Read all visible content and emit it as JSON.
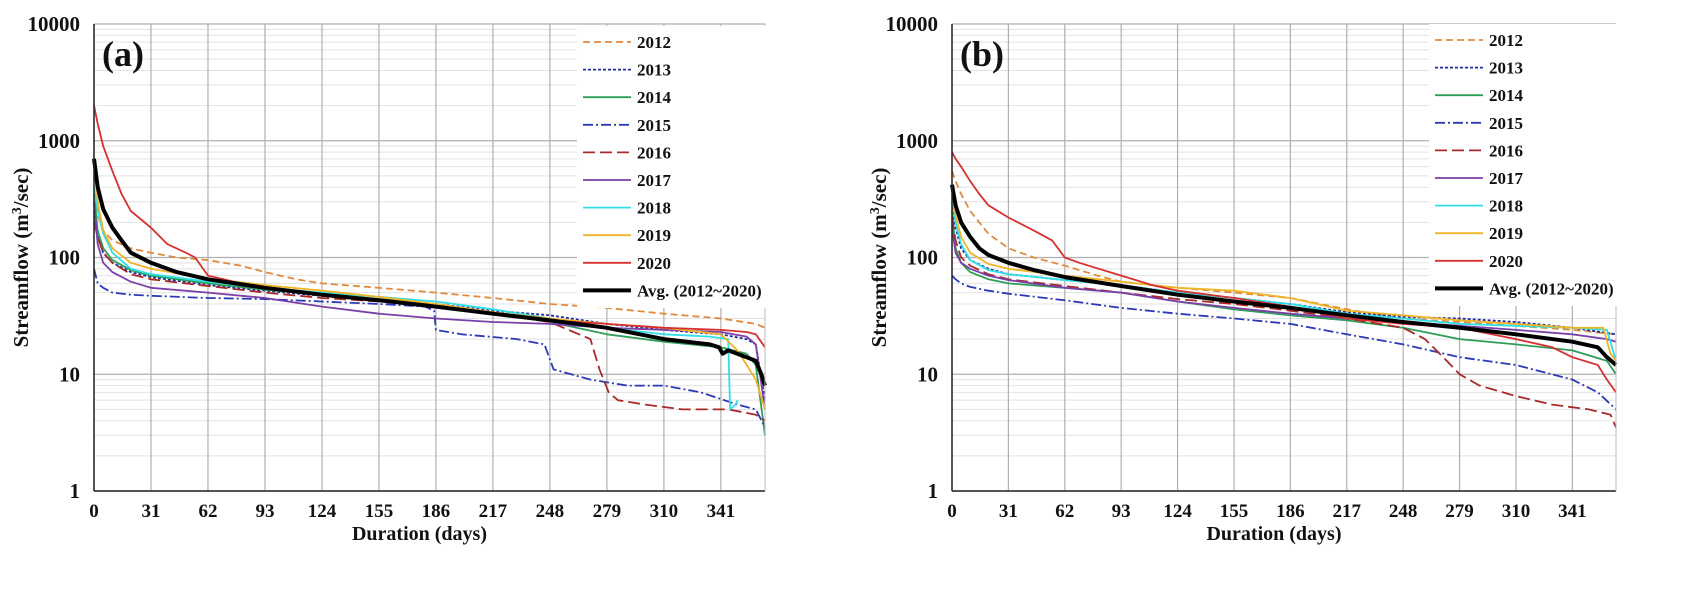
{
  "chart_data": [
    {
      "type": "line",
      "panel_label": "(a)",
      "xlabel": "Duration (days)",
      "ylabel_main": "Streamflow (m",
      "ylabel_sup": "3",
      "ylabel_tail": "/sec)",
      "yscale": "log",
      "xlim": [
        0,
        365
      ],
      "ylim": [
        1,
        10000
      ],
      "xticks": [
        0,
        31,
        62,
        93,
        124,
        155,
        186,
        217,
        248,
        279,
        310,
        341
      ],
      "yticks": [
        1,
        10,
        100,
        1000,
        10000
      ],
      "ytick_labels": [
        "1",
        "10",
        "100",
        "1000",
        "10000"
      ],
      "grid": true,
      "legend_position": "top-right",
      "series": [
        {
          "name": "2012",
          "color": "#E08A3C",
          "dash": "7,4",
          "width": 1.8,
          "x": [
            0,
            2,
            5,
            10,
            20,
            31,
            45,
            62,
            80,
            93,
            110,
            124,
            155,
            186,
            217,
            248,
            279,
            310,
            341,
            360,
            365
          ],
          "y": [
            350,
            230,
            170,
            140,
            120,
            110,
            100,
            95,
            85,
            75,
            65,
            60,
            55,
            50,
            45,
            40,
            37,
            33,
            30,
            27,
            25
          ]
        },
        {
          "name": "2013",
          "color": "#1F2C9C",
          "dash": "3,2",
          "width": 1.8,
          "x": [
            0,
            2,
            5,
            10,
            20,
            31,
            62,
            93,
            124,
            155,
            186,
            217,
            248,
            279,
            310,
            341,
            355,
            360,
            365
          ],
          "y": [
            250,
            150,
            110,
            90,
            75,
            68,
            58,
            52,
            47,
            43,
            40,
            35,
            32,
            27,
            24,
            22,
            20,
            18,
            6
          ]
        },
        {
          "name": "2014",
          "color": "#2E9E58",
          "dash": "",
          "width": 1.8,
          "x": [
            0,
            2,
            5,
            10,
            20,
            31,
            62,
            93,
            124,
            155,
            186,
            217,
            248,
            279,
            310,
            341,
            355,
            360,
            365
          ],
          "y": [
            350,
            170,
            120,
            95,
            78,
            70,
            60,
            53,
            48,
            44,
            40,
            33,
            28,
            22,
            19,
            17,
            15,
            12,
            3
          ]
        },
        {
          "name": "2015",
          "color": "#2B3BB8",
          "dash": "10,3,2,3",
          "width": 1.8,
          "x": [
            0,
            2,
            5,
            10,
            20,
            31,
            62,
            93,
            124,
            155,
            180,
            185,
            186,
            200,
            230,
            245,
            250,
            270,
            290,
            310,
            330,
            350,
            360,
            365
          ],
          "y": [
            80,
            60,
            55,
            50,
            48,
            47,
            45,
            44,
            42,
            40,
            38,
            35,
            24,
            22,
            20,
            18,
            11,
            9,
            8,
            8,
            7,
            5.5,
            5,
            3.5
          ]
        },
        {
          "name": "2016",
          "color": "#A82A2A",
          "dash": "12,5",
          "width": 1.8,
          "x": [
            0,
            2,
            5,
            10,
            20,
            31,
            62,
            93,
            124,
            155,
            186,
            217,
            248,
            270,
            275,
            280,
            285,
            300,
            320,
            345,
            360,
            365
          ],
          "y": [
            200,
            150,
            110,
            90,
            72,
            65,
            57,
            50,
            45,
            42,
            38,
            33,
            28,
            20,
            11,
            7,
            6,
            5.5,
            5,
            5,
            4.5,
            4
          ]
        },
        {
          "name": "2017",
          "color": "#7B3FA8",
          "dash": "",
          "width": 1.8,
          "x": [
            0,
            2,
            5,
            10,
            20,
            31,
            62,
            93,
            124,
            155,
            186,
            217,
            248,
            279,
            310,
            341,
            355,
            360,
            365
          ],
          "y": [
            300,
            130,
            90,
            75,
            62,
            55,
            50,
            45,
            38,
            33,
            30,
            28,
            27,
            25,
            24,
            23,
            21,
            18,
            5
          ]
        },
        {
          "name": "2018",
          "color": "#2EE0E8",
          "dash": "",
          "width": 1.8,
          "x": [
            0,
            2,
            5,
            10,
            20,
            31,
            62,
            93,
            124,
            155,
            186,
            217,
            248,
            279,
            310,
            335,
            345,
            346,
            349,
            350
          ],
          "y": [
            400,
            250,
            160,
            110,
            80,
            72,
            62,
            55,
            50,
            46,
            42,
            36,
            30,
            25,
            22,
            21,
            20,
            5,
            5.5,
            6
          ]
        },
        {
          "name": "2019",
          "color": "#F0B428",
          "dash": "",
          "width": 1.8,
          "x": [
            0,
            2,
            5,
            10,
            20,
            31,
            62,
            93,
            124,
            155,
            186,
            217,
            248,
            279,
            310,
            341,
            350,
            360,
            365
          ],
          "y": [
            700,
            300,
            170,
            120,
            90,
            80,
            66,
            58,
            52,
            46,
            40,
            34,
            30,
            27,
            25,
            22,
            16,
            9,
            5
          ]
        },
        {
          "name": "2020",
          "color": "#D63030",
          "dash": "",
          "width": 1.8,
          "x": [
            0,
            2,
            5,
            10,
            15,
            20,
            31,
            40,
            50,
            55,
            62,
            80,
            93,
            124,
            155,
            186,
            217,
            248,
            279,
            310,
            341,
            355,
            360,
            365
          ],
          "y": [
            2000,
            1400,
            900,
            550,
            350,
            250,
            180,
            130,
            110,
            100,
            70,
            60,
            55,
            48,
            43,
            38,
            33,
            29,
            27,
            25,
            24,
            23,
            22,
            17
          ]
        },
        {
          "name": "Avg. (2012~2020)",
          "color": "#000000",
          "dash": "",
          "width": 4,
          "x": [
            0,
            2,
            5,
            10,
            15,
            20,
            31,
            45,
            62,
            93,
            124,
            155,
            186,
            217,
            248,
            279,
            310,
            335,
            340,
            342,
            345,
            355,
            360,
            363,
            365
          ],
          "y": [
            700,
            400,
            260,
            180,
            140,
            110,
            90,
            75,
            65,
            55,
            48,
            43,
            38,
            33,
            29,
            25,
            20,
            18,
            17,
            15,
            16,
            14,
            13,
            10,
            8
          ]
        }
      ]
    },
    {
      "type": "line",
      "panel_label": "(b)",
      "xlabel": "Duration (days)",
      "ylabel_main": "Streamflow (m",
      "ylabel_sup": "3",
      "ylabel_tail": "/sec)",
      "yscale": "log",
      "xlim": [
        0,
        365
      ],
      "ylim": [
        1,
        10000
      ],
      "xticks": [
        0,
        31,
        62,
        93,
        124,
        155,
        186,
        217,
        248,
        279,
        310,
        341
      ],
      "yticks": [
        1,
        10,
        100,
        1000,
        10000
      ],
      "ytick_labels": [
        "1",
        "10",
        "100",
        "1000",
        "10000"
      ],
      "grid": true,
      "legend_position": "top-right",
      "series": [
        {
          "name": "2012",
          "color": "#E08A3C",
          "dash": "7,4",
          "width": 1.8,
          "x": [
            0,
            2,
            5,
            10,
            15,
            20,
            31,
            45,
            62,
            80,
            93,
            124,
            155,
            186,
            217,
            248,
            279,
            310,
            341,
            365
          ],
          "y": [
            550,
            450,
            350,
            250,
            200,
            160,
            120,
            100,
            85,
            70,
            62,
            55,
            50,
            45,
            36,
            30,
            28,
            26,
            24,
            22
          ]
        },
        {
          "name": "2013",
          "color": "#1F2C9C",
          "dash": "3,2",
          "width": 1.8,
          "x": [
            0,
            2,
            5,
            10,
            20,
            31,
            62,
            93,
            124,
            155,
            186,
            217,
            248,
            279,
            310,
            341,
            365
          ],
          "y": [
            300,
            180,
            120,
            95,
            80,
            72,
            64,
            58,
            50,
            45,
            40,
            34,
            31,
            30,
            28,
            25,
            22
          ]
        },
        {
          "name": "2014",
          "color": "#2E9E58",
          "dash": "",
          "width": 1.8,
          "x": [
            0,
            2,
            5,
            10,
            20,
            31,
            62,
            93,
            124,
            155,
            186,
            217,
            248,
            279,
            310,
            341,
            360,
            365
          ],
          "y": [
            250,
            120,
            90,
            75,
            65,
            60,
            55,
            50,
            42,
            36,
            32,
            29,
            25,
            20,
            18,
            16,
            13,
            10
          ]
        },
        {
          "name": "2015",
          "color": "#2B3BB8",
          "dash": "10,3,2,3",
          "width": 1.8,
          "x": [
            0,
            2,
            5,
            10,
            20,
            31,
            62,
            93,
            124,
            155,
            186,
            217,
            248,
            279,
            310,
            341,
            355,
            365
          ],
          "y": [
            70,
            65,
            60,
            56,
            52,
            49,
            43,
            37,
            33,
            30,
            27,
            22,
            18,
            14,
            12,
            9,
            7,
            5
          ]
        },
        {
          "name": "2016",
          "color": "#A82A2A",
          "dash": "12,5",
          "width": 1.8,
          "x": [
            0,
            2,
            5,
            10,
            20,
            31,
            62,
            93,
            124,
            155,
            186,
            217,
            248,
            260,
            270,
            279,
            290,
            310,
            330,
            350,
            362,
            365
          ],
          "y": [
            220,
            140,
            100,
            85,
            72,
            65,
            57,
            50,
            44,
            40,
            35,
            30,
            25,
            20,
            14,
            10,
            8,
            6.5,
            5.5,
            5,
            4.5,
            3.5
          ]
        },
        {
          "name": "2017",
          "color": "#7B3FA8",
          "dash": "",
          "width": 1.8,
          "x": [
            0,
            2,
            5,
            10,
            20,
            31,
            62,
            93,
            124,
            155,
            186,
            217,
            248,
            279,
            310,
            341,
            360,
            365
          ],
          "y": [
            180,
            110,
            90,
            80,
            70,
            64,
            55,
            50,
            42,
            37,
            33,
            30,
            28,
            26,
            24,
            22,
            20,
            19
          ]
        },
        {
          "name": "2018",
          "color": "#2EE0E8",
          "dash": "",
          "width": 1.8,
          "x": [
            0,
            2,
            5,
            10,
            20,
            31,
            62,
            93,
            124,
            155,
            186,
            217,
            248,
            279,
            310,
            341,
            360,
            365
          ],
          "y": [
            350,
            200,
            130,
            95,
            78,
            72,
            64,
            58,
            50,
            45,
            40,
            33,
            30,
            27,
            26,
            25,
            24,
            13
          ]
        },
        {
          "name": "2019",
          "color": "#F0B428",
          "dash": "",
          "width": 1.8,
          "x": [
            0,
            2,
            5,
            10,
            20,
            31,
            62,
            93,
            124,
            155,
            186,
            217,
            248,
            279,
            310,
            341,
            358,
            362,
            365
          ],
          "y": [
            400,
            230,
            150,
            110,
            88,
            80,
            70,
            62,
            55,
            52,
            45,
            35,
            32,
            29,
            27,
            25,
            25,
            15,
            13
          ]
        },
        {
          "name": "2020",
          "color": "#D63030",
          "dash": "",
          "width": 1.8,
          "x": [
            0,
            2,
            5,
            10,
            15,
            20,
            31,
            45,
            55,
            62,
            70,
            93,
            110,
            124,
            155,
            186,
            217,
            248,
            279,
            310,
            330,
            341,
            355,
            360,
            365
          ],
          "y": [
            800,
            700,
            600,
            450,
            350,
            280,
            220,
            170,
            140,
            100,
            90,
            70,
            58,
            52,
            45,
            38,
            30,
            27,
            25,
            20,
            17,
            14,
            12,
            9,
            7
          ]
        },
        {
          "name": "Avg. (2012~2020)",
          "color": "#000000",
          "dash": "",
          "width": 4,
          "x": [
            0,
            2,
            5,
            10,
            15,
            20,
            31,
            45,
            62,
            93,
            124,
            155,
            186,
            217,
            248,
            279,
            310,
            341,
            355,
            360,
            365
          ],
          "y": [
            420,
            280,
            200,
            150,
            120,
            105,
            90,
            78,
            68,
            57,
            48,
            42,
            37,
            32,
            28,
            25,
            22,
            19,
            17,
            14,
            12
          ]
        }
      ]
    }
  ]
}
